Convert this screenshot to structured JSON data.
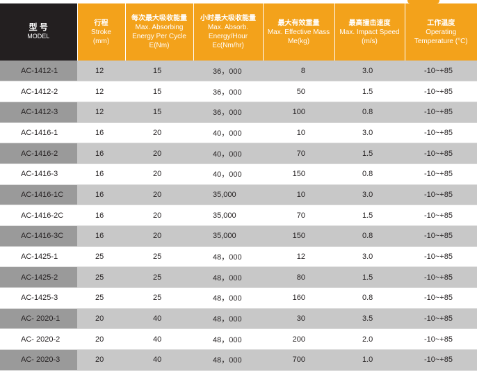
{
  "header": {
    "model_zh": "型 号",
    "model_en": "MODEL",
    "stroke_zh": "行程",
    "stroke_en": "Stroke",
    "stroke_unit": "(mm)",
    "cycle_zh": "每次最大吸收能量",
    "cycle_en": "Max. Absorbing Energy Per Cycle E(Nm)",
    "hour_zh": "小时最大吸收能量",
    "hour_en": "Max. Absorb. Energy/Hour Ec(Nm/hr)",
    "mass_zh": "最大有效重量",
    "mass_en": "Max. Effective Mass Me(kg)",
    "speed_zh": "最高撞击速度",
    "speed_en": "Max. Impact Speed (m/s)",
    "temp_zh": "工作温度",
    "temp_en": "Operating Temperature (°C)"
  },
  "colors": {
    "accent": "#f3a21b",
    "model_header": "#231f20",
    "row_shade": "#c8c8c8",
    "model_shade": "#9a9a9a"
  },
  "rows": [
    {
      "model": "AC-1412-1",
      "stroke": "12",
      "cycle": "15",
      "hour": "36，000",
      "mass": "8",
      "speed": "3.0",
      "temp": "-10~+85"
    },
    {
      "model": "AC-1412-2",
      "stroke": "12",
      "cycle": "15",
      "hour": "36，000",
      "mass": "50",
      "speed": "1.5",
      "temp": "-10~+85"
    },
    {
      "model": "AC-1412-3",
      "stroke": "12",
      "cycle": "15",
      "hour": "36，000",
      "mass": "100",
      "speed": "0.8",
      "temp": "-10~+85"
    },
    {
      "model": "AC-1416-1",
      "stroke": "16",
      "cycle": "20",
      "hour": "40，000",
      "mass": "10",
      "speed": "3.0",
      "temp": "-10~+85"
    },
    {
      "model": "AC-1416-2",
      "stroke": "16",
      "cycle": "20",
      "hour": "40，000",
      "mass": "70",
      "speed": "1.5",
      "temp": "-10~+85"
    },
    {
      "model": "AC-1416-3",
      "stroke": "16",
      "cycle": "20",
      "hour": "40，000",
      "mass": "150",
      "speed": "0.8",
      "temp": "-10~+85"
    },
    {
      "model": "AC-1416-1C",
      "stroke": "16",
      "cycle": "20",
      "hour": "35,000",
      "mass": "10",
      "speed": "3.0",
      "temp": "-10~+85"
    },
    {
      "model": "AC-1416-2C",
      "stroke": "16",
      "cycle": "20",
      "hour": "35,000",
      "mass": "70",
      "speed": "1.5",
      "temp": "-10~+85"
    },
    {
      "model": "AC-1416-3C",
      "stroke": "16",
      "cycle": "20",
      "hour": "35,000",
      "mass": "150",
      "speed": "0.8",
      "temp": "-10~+85"
    },
    {
      "model": "AC-1425-1",
      "stroke": "25",
      "cycle": "25",
      "hour": "48，000",
      "mass": "12",
      "speed": "3.0",
      "temp": "-10~+85"
    },
    {
      "model": "AC-1425-2",
      "stroke": "25",
      "cycle": "25",
      "hour": "48，000",
      "mass": "80",
      "speed": "1.5",
      "temp": "-10~+85"
    },
    {
      "model": "AC-1425-3",
      "stroke": "25",
      "cycle": "25",
      "hour": "48，000",
      "mass": "160",
      "speed": "0.8",
      "temp": "-10~+85"
    },
    {
      "model": "AC- 2020-1",
      "stroke": "20",
      "cycle": "40",
      "hour": "48，000",
      "mass": "30",
      "speed": "3.5",
      "temp": "-10~+85"
    },
    {
      "model": "AC- 2020-2",
      "stroke": "20",
      "cycle": "40",
      "hour": "48，000",
      "mass": "200",
      "speed": "2.0",
      "temp": "-10~+85"
    },
    {
      "model": "AC- 2020-3",
      "stroke": "20",
      "cycle": "40",
      "hour": "48，000",
      "mass": "700",
      "speed": "1.0",
      "temp": "-10~+85"
    }
  ]
}
